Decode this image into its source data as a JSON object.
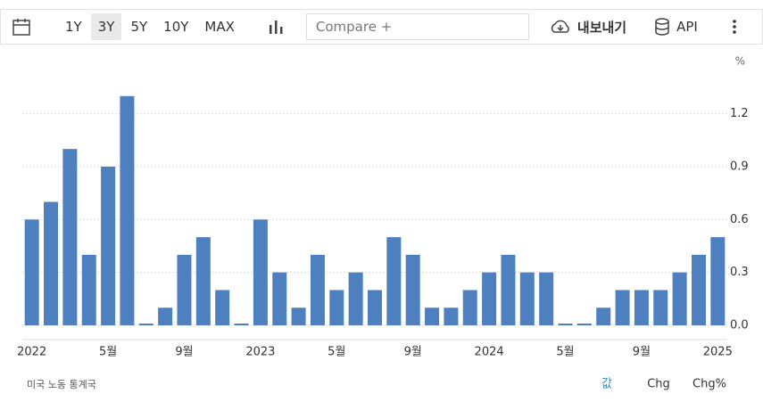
{
  "toolbar": {
    "ranges": [
      "1Y",
      "3Y",
      "5Y",
      "10Y",
      "MAX"
    ],
    "compare": "Compare +",
    "export": "내보내기",
    "api": "API"
  },
  "chart_data": {
    "type": "bar",
    "y_unit": "%",
    "source": "미국 노동 통계국",
    "categories": [
      "2022",
      null,
      null,
      null,
      "5월",
      null,
      null,
      null,
      "9월",
      null,
      null,
      null,
      "2023",
      null,
      null,
      null,
      "5월",
      null,
      null,
      null,
      "9월",
      null,
      null,
      null,
      "2024",
      null,
      null,
      null,
      "5월",
      null,
      null,
      null,
      "9월",
      null,
      null,
      null,
      "2025"
    ],
    "values": [
      0.6,
      0.7,
      1.0,
      0.4,
      0.9,
      1.3,
      0.0,
      0.1,
      0.4,
      0.5,
      0.2,
      0.0,
      0.6,
      0.3,
      0.1,
      0.4,
      0.2,
      0.3,
      0.2,
      0.5,
      0.4,
      0.1,
      0.1,
      0.2,
      0.3,
      0.4,
      0.3,
      0.3,
      0.0,
      0.0,
      0.1,
      0.2,
      0.2,
      0.2,
      0.3,
      0.4,
      0.5
    ],
    "color": "#4e7fbf",
    "ylim": [
      0,
      1.4
    ],
    "yticks": [
      {
        "value": 0,
        "label": "0.0"
      },
      0.3,
      0.6,
      0.9,
      1.2
    ],
    "grid": true,
    "views": [
      "값",
      "Chg",
      "Chg%"
    ]
  }
}
